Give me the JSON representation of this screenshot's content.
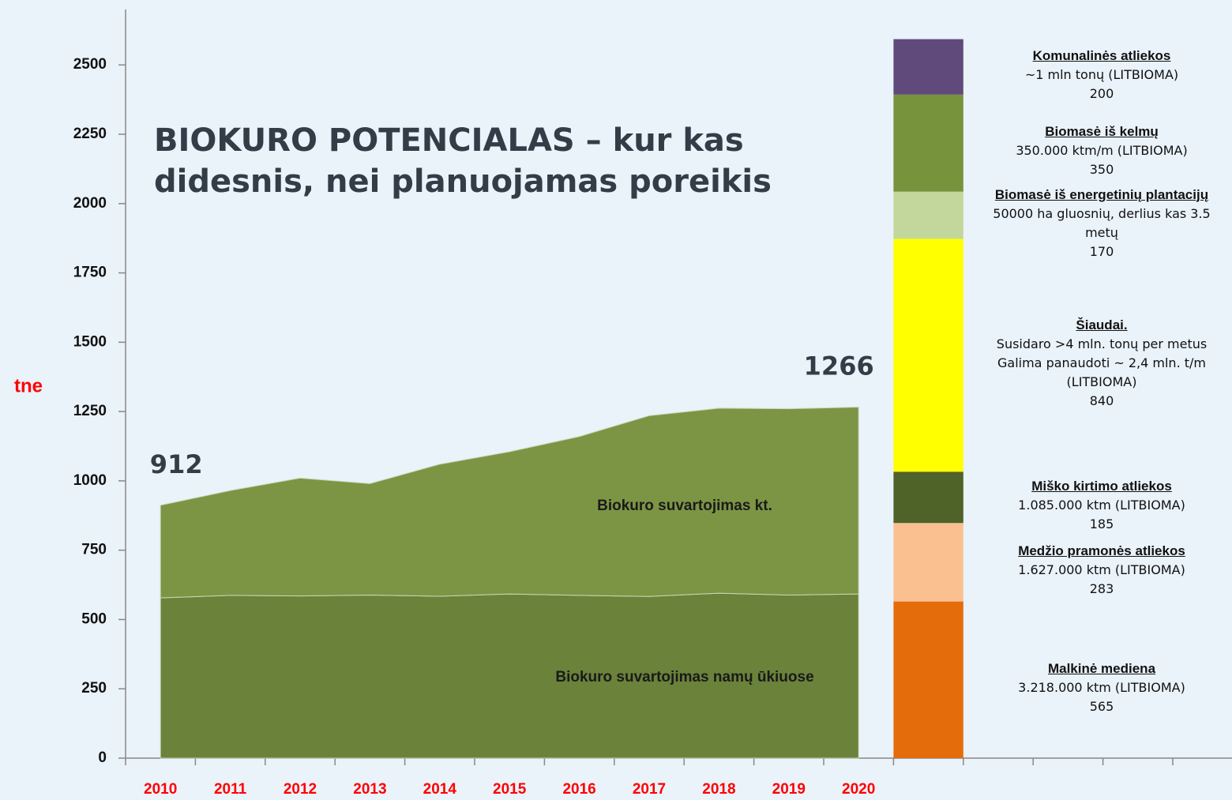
{
  "chart_data": [
    {
      "type": "area",
      "title": [
        "BIOKURO POTENCIALAS – kur kas",
        "didesnis, nei planuojamas poreikis"
      ],
      "y_label": "tne",
      "categories": [
        "2010",
        "2011",
        "2012",
        "2013",
        "2014",
        "2015",
        "2016",
        "2017",
        "2018",
        "2019",
        "2020"
      ],
      "series": [
        {
          "name": "Biokuro suvartojimas namų ūkiuose",
          "color": "#6b823a",
          "values": [
            578,
            587,
            585,
            588,
            584,
            592,
            587,
            583,
            595,
            588,
            592
          ]
        },
        {
          "name": "Biokuro suvartojimas kt.",
          "color": "#7c9544",
          "values": [
            334,
            378,
            425,
            402,
            476,
            513,
            573,
            652,
            667,
            672,
            674
          ]
        }
      ],
      "annotations": [
        "912",
        "1266"
      ],
      "ylim": [
        0,
        2700
      ],
      "yticks": [
        0,
        250,
        500,
        750,
        1000,
        1250,
        1500,
        1750,
        2000,
        2250,
        2500
      ]
    },
    {
      "type": "stacked_bar",
      "ylim": [
        0,
        2700
      ],
      "segments": [
        {
          "name": "Malkinė mediena",
          "description": [
            "3.218.000 ktm  (LITBIOMA)"
          ],
          "color": "#e46c0a",
          "value": 565
        },
        {
          "name": "Medžio pramonės atliekos",
          "description": [
            "1.627.000 ktm  (LITBIOMA)"
          ],
          "color": "#fac090",
          "value": 283
        },
        {
          "name": "Miško kirtimo atliekos",
          "description": [
            "1.085.000 ktm (LITBIOMA)"
          ],
          "color": "#4f6228",
          "value": 185
        },
        {
          "name": "Šiaudai.",
          "description": [
            "Susidaro >4 mln. tonų per metus",
            "Galima  panaudoti ~ 2,4 mln. t/m",
            "(LITBIOMA)"
          ],
          "color": "#ffff00",
          "value": 840
        },
        {
          "name": "Biomasė iš energetinių plantacijų",
          "description": [
            "50000 ha gluosnių, derlius kas 3.5",
            "metų"
          ],
          "color": "#c3d69b",
          "value": 170
        },
        {
          "name": "Biomasė iš kelmų",
          "description": [
            "350.000 ktm/m (LITBIOMA)"
          ],
          "color": "#77933c",
          "value": 350
        },
        {
          "name": "Komunalinės atliekos",
          "description": [
            "~1 mln tonų (LITBIOMA)"
          ],
          "color": "#604a7b",
          "value": 200
        }
      ]
    }
  ]
}
